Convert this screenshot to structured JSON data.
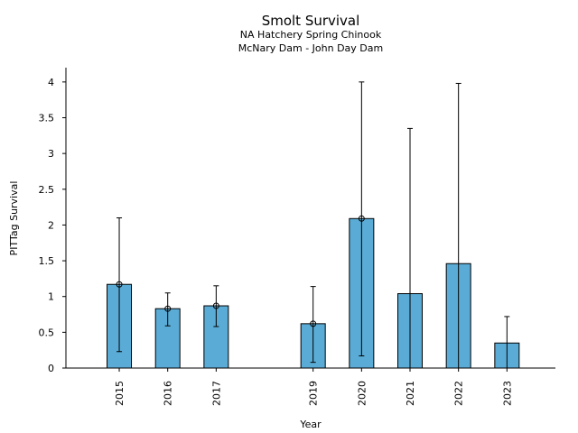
{
  "chart_data": {
    "type": "bar",
    "title": "Smolt Survival",
    "subtitle_lines": [
      "NA Hatchery Spring Chinook",
      "McNary Dam - John Day Dam"
    ],
    "xlabel": "Year",
    "ylabel": "PITTag Survival",
    "categories": [
      "2015",
      "2016",
      "2017",
      "2019",
      "2020",
      "2021",
      "2022",
      "2023"
    ],
    "x_positions": [
      2015,
      2016,
      2017,
      2019,
      2020,
      2021,
      2022,
      2023
    ],
    "values": [
      1.17,
      0.83,
      0.87,
      0.62,
      2.09,
      1.04,
      1.46,
      0.35
    ],
    "error_low": [
      0.23,
      0.59,
      0.58,
      0.08,
      0.17,
      0.0,
      0.0,
      0.0
    ],
    "error_high": [
      2.1,
      1.05,
      1.15,
      1.14,
      4.0,
      3.35,
      3.98,
      0.72
    ],
    "has_marker": [
      true,
      true,
      true,
      true,
      true,
      false,
      false,
      false
    ],
    "ylim": [
      0,
      4.2
    ],
    "xlim": [
      2013.9,
      2024.0
    ],
    "y_ticks": [
      0,
      0.5,
      1,
      1.5,
      2,
      2.5,
      3,
      3.5,
      4
    ],
    "y_tick_labels": [
      "0",
      "0.5",
      "1",
      "1.5",
      "2",
      "2.5",
      "3",
      "3.5",
      "4"
    ],
    "bar_color": "#5aacd6",
    "grid": false,
    "legend": "none"
  }
}
